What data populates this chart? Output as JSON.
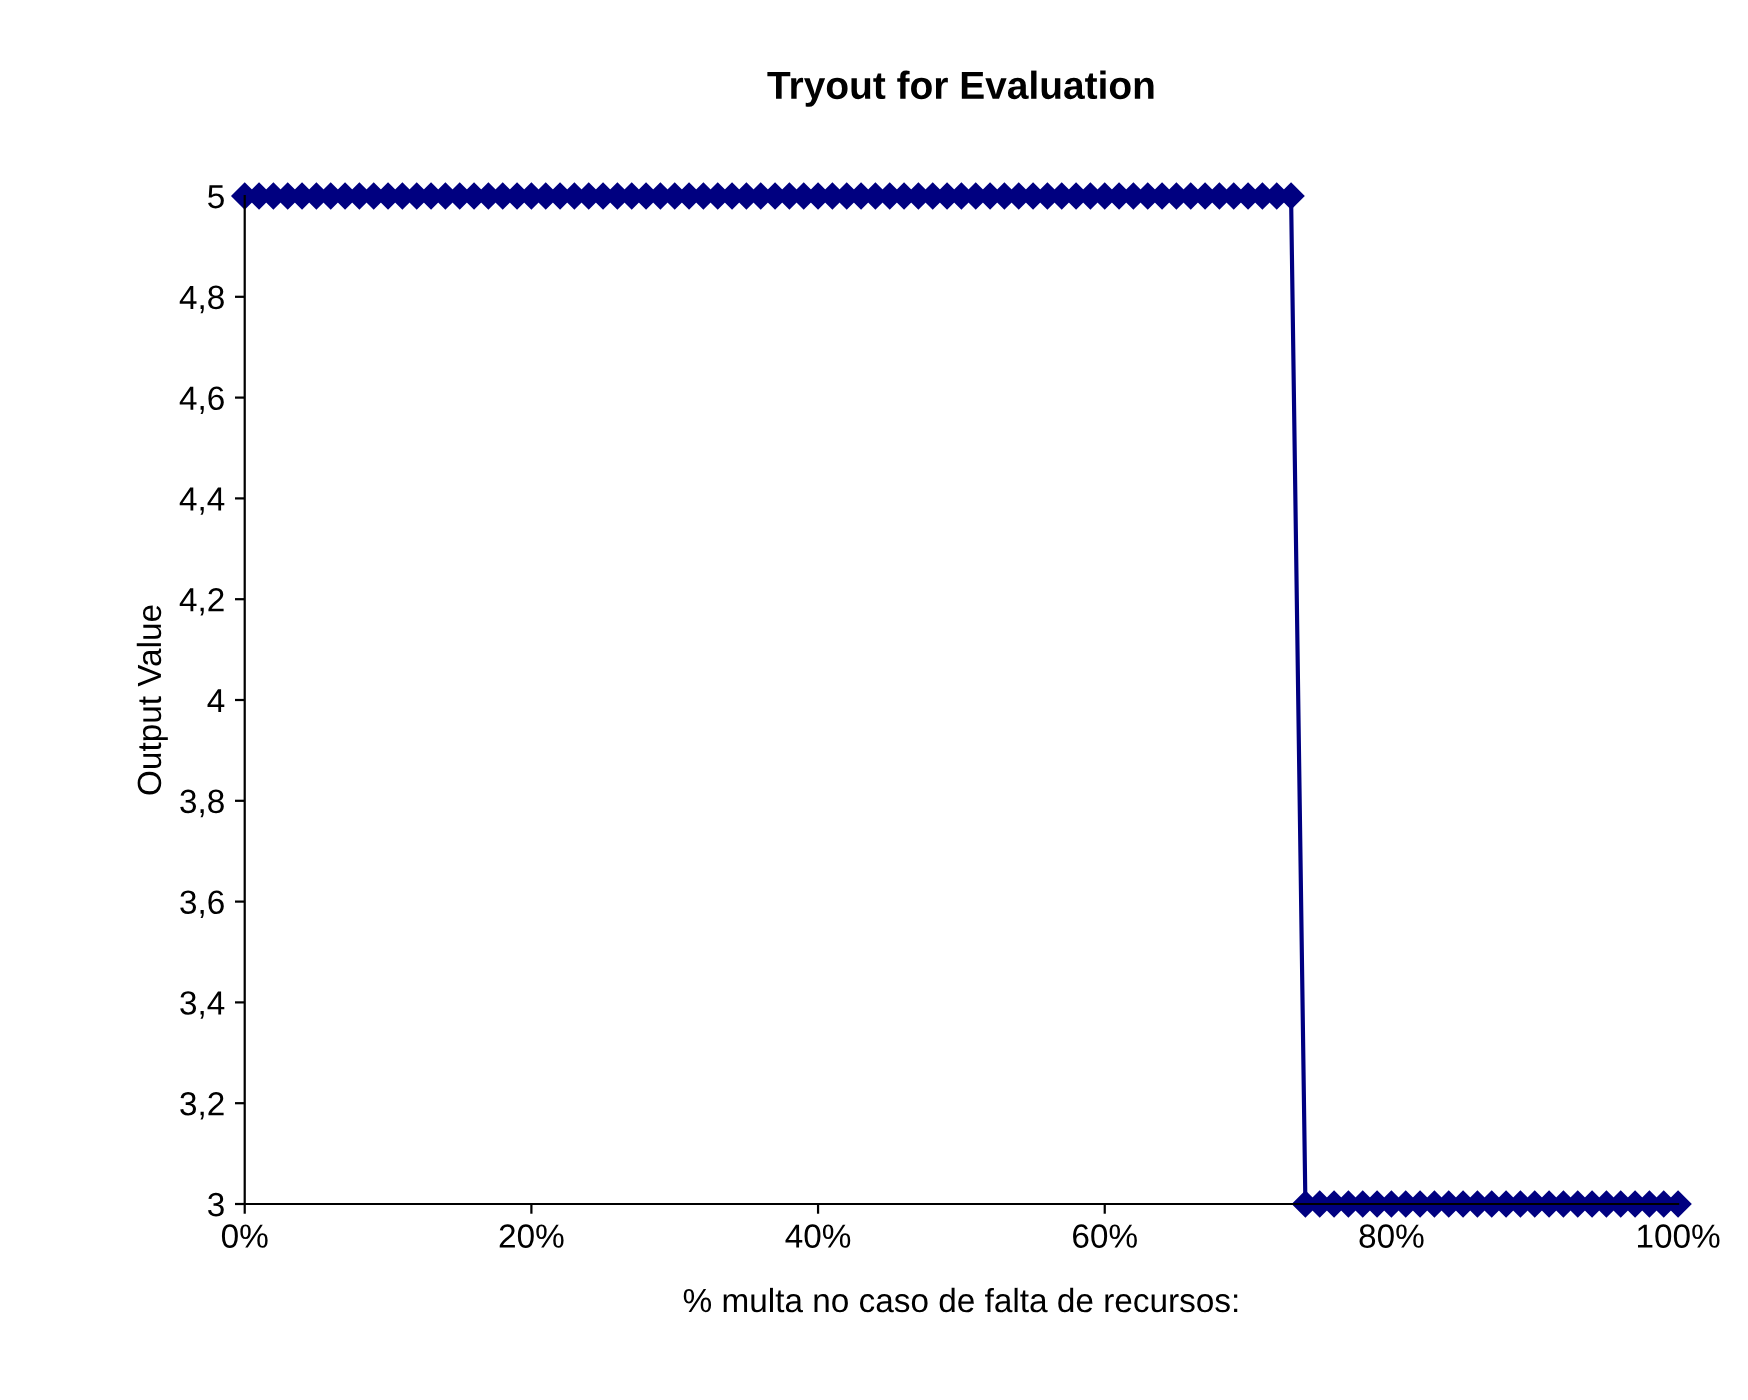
{
  "chart_data": {
    "type": "line",
    "title": "Tryout for Evaluation",
    "xlabel": "% multa no caso de falta de recursos:",
    "ylabel": "Output Value",
    "x": [
      0,
      1,
      2,
      3,
      4,
      5,
      6,
      7,
      8,
      9,
      10,
      11,
      12,
      13,
      14,
      15,
      16,
      17,
      18,
      19,
      20,
      21,
      22,
      23,
      24,
      25,
      26,
      27,
      28,
      29,
      30,
      31,
      32,
      33,
      34,
      35,
      36,
      37,
      38,
      39,
      40,
      41,
      42,
      43,
      44,
      45,
      46,
      47,
      48,
      49,
      50,
      51,
      52,
      53,
      54,
      55,
      56,
      57,
      58,
      59,
      60,
      61,
      62,
      63,
      64,
      65,
      66,
      67,
      68,
      69,
      70,
      71,
      72,
      73,
      74,
      75,
      76,
      77,
      78,
      79,
      80,
      81,
      82,
      83,
      84,
      85,
      86,
      87,
      88,
      89,
      90,
      91,
      92,
      93,
      94,
      95,
      96,
      97,
      98,
      99,
      100
    ],
    "series": [
      {
        "color": "#000080",
        "values": [
          5,
          5,
          5,
          5,
          5,
          5,
          5,
          5,
          5,
          5,
          5,
          5,
          5,
          5,
          5,
          5,
          5,
          5,
          5,
          5,
          5,
          5,
          5,
          5,
          5,
          5,
          5,
          5,
          5,
          5,
          5,
          5,
          5,
          5,
          5,
          5,
          5,
          5,
          5,
          5,
          5,
          5,
          5,
          5,
          5,
          5,
          5,
          5,
          5,
          5,
          5,
          5,
          5,
          5,
          5,
          5,
          5,
          5,
          5,
          5,
          5,
          5,
          5,
          5,
          5,
          5,
          5,
          5,
          5,
          5,
          5,
          5,
          5,
          5,
          3,
          3,
          3,
          3,
          3,
          3,
          3,
          3,
          3,
          3,
          3,
          3,
          3,
          3,
          3,
          3,
          3,
          3,
          3,
          3,
          3,
          3,
          3,
          3,
          3,
          3,
          3
        ]
      }
    ],
    "xlim": [
      0,
      100
    ],
    "xticks": [
      {
        "value": 0,
        "label": "0%"
      },
      {
        "value": 20,
        "label": "20%"
      },
      {
        "value": 40,
        "label": "40%"
      },
      {
        "value": 60,
        "label": "60%"
      },
      {
        "value": 80,
        "label": "80%"
      },
      {
        "value": 100,
        "label": "100%"
      }
    ],
    "ylim": [
      3,
      5
    ],
    "yticks": [
      3,
      {
        "value": 3.2,
        "label": "3,2"
      },
      {
        "value": 3.4,
        "label": "3,4"
      },
      {
        "value": 3.6,
        "label": "3,6"
      },
      {
        "value": 3.8,
        "label": "3,8"
      },
      4,
      {
        "value": 4.2,
        "label": "4,2"
      },
      {
        "value": 4.4,
        "label": "4,4"
      },
      {
        "value": 4.6,
        "label": "4,6"
      },
      {
        "value": 4.8,
        "label": "4,8"
      },
      5
    ],
    "marker": "diamond",
    "line_style": "solid",
    "grid": false,
    "legend": false
  }
}
